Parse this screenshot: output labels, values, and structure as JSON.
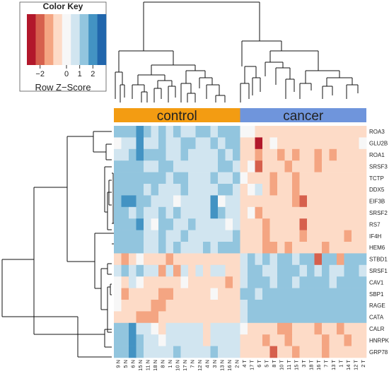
{
  "color_key": {
    "title": "Color Key",
    "ticks": [
      "−2",
      "0",
      "1",
      "2"
    ],
    "tick_values": [
      -2,
      0,
      1,
      2
    ],
    "subtitle": "Row Z−Score",
    "range": [
      -3,
      3
    ],
    "palette": [
      "#b2182b",
      "#d6604d",
      "#f4a582",
      "#fddbc7",
      "#f7f7f7",
      "#d1e5f0",
      "#92c5de",
      "#4393c3",
      "#2166ac"
    ]
  },
  "chart_data": {
    "type": "heatmap",
    "groups": [
      {
        "label": "control",
        "color": "#f39c12",
        "count": 17
      },
      {
        "label": "cancer",
        "color": "#6f95dc",
        "count": 17
      }
    ],
    "columns": [
      "9 N",
      "5 N",
      "6 N",
      "15 N",
      "11 N",
      "18 N",
      "8 N",
      "1 N",
      "10 N",
      "17 N",
      "7 N",
      "12 N",
      "4 N",
      "3 N",
      "13 N",
      "16 N",
      "2 N",
      "4 T",
      "17 T",
      "6 T",
      "5 T",
      "8 T",
      "10 T",
      "11 T",
      "15 T",
      "3 T",
      "18 T",
      "16 T",
      "7 T",
      "13 T",
      "1 T",
      "14 T",
      "12 T",
      "2 T"
    ],
    "rows": [
      "ROA3",
      "GLU2B",
      "ROA1",
      "SRSF3",
      "TCTP",
      "DDX5",
      "EIF3B",
      "SRSF2",
      "RS7",
      "IF4H",
      "HEM6",
      "STBD1",
      "SRSF1",
      "CAV1",
      "SBP1",
      "RAGE",
      "CATA",
      "CALR",
      "HNRPK",
      "GRP78"
    ],
    "values": [
      [
        1.2,
        1.0,
        1.4,
        2.0,
        1.0,
        0.5,
        1.0,
        0.5,
        1.0,
        0.8,
        0.8,
        1.0,
        1.2,
        0.9,
        1.2,
        1.0,
        1.2,
        -0.3,
        -0.1,
        -1.0,
        -0.7,
        -0.8,
        -0.6,
        -0.9,
        -0.6,
        -0.8,
        -1.0,
        -0.8,
        -0.6,
        -1.0,
        -0.7,
        -0.8,
        -0.6,
        -0.9
      ],
      [
        -0.3,
        0.6,
        0.5,
        2.0,
        0.8,
        0.9,
        1.5,
        0.6,
        0.5,
        1.4,
        1.0,
        0.9,
        0.6,
        1.4,
        0.8,
        1.2,
        1.5,
        -0.8,
        -0.5,
        -2.4,
        -0.8,
        -0.2,
        -0.8,
        -0.8,
        -0.5,
        -1.0,
        -0.6,
        -0.9,
        -0.4,
        -0.9,
        -0.7,
        -0.6,
        -0.8,
        -0.3
      ],
      [
        0.9,
        0.8,
        1.0,
        2.1,
        1.0,
        1.5,
        1.0,
        0.4,
        0.8,
        1.4,
        0.4,
        0.5,
        0.8,
        0.7,
        1.0,
        0.8,
        1.6,
        -0.7,
        -0.6,
        -1.2,
        -0.9,
        -0.4,
        -1.6,
        -0.5,
        -1.3,
        -0.8,
        -0.7,
        -1.6,
        -0.9,
        -1.1,
        -0.5,
        -1.0,
        -0.7,
        -1.0
      ],
      [
        1.0,
        1.0,
        1.2,
        1.3,
        0.9,
        0.6,
        1.0,
        1.0,
        0.8,
        0.4,
        0.8,
        0.8,
        0.6,
        0.5,
        1.0,
        1.4,
        0.7,
        -0.7,
        -0.3,
        -2.2,
        -0.8,
        -1.0,
        -1.0,
        -1.2,
        -0.6,
        -0.6,
        -0.8,
        -1.1,
        -1.0,
        -0.8,
        -0.9,
        -0.8,
        -1.0,
        -0.9
      ],
      [
        1.2,
        1.2,
        1.0,
        1.4,
        1.0,
        1.1,
        1.1,
        0.9,
        1.1,
        1.1,
        0.9,
        0.9,
        0.6,
        1.2,
        0.8,
        0.4,
        1.0,
        -0.3,
        -0.4,
        -1.0,
        -0.7,
        -1.5,
        -0.6,
        -1.0,
        -1.1,
        -0.9,
        -0.8,
        -0.9,
        -0.7,
        -1.0,
        -0.8,
        -0.8,
        -1.0,
        -0.7
      ],
      [
        1.0,
        1.2,
        1.4,
        1.0,
        0.8,
        1.0,
        0.6,
        0.4,
        0.9,
        1.0,
        0.8,
        0.6,
        0.8,
        0.8,
        1.0,
        1.2,
        0.9,
        -0.8,
        -0.2,
        0.5,
        -0.8,
        -1.2,
        -0.8,
        -1.0,
        -1.2,
        -0.8,
        -0.6,
        -1.0,
        -0.9,
        -0.8,
        -0.8,
        -1.0,
        -0.7,
        -0.8
      ],
      [
        1.6,
        2.2,
        2.2,
        1.2,
        1.0,
        0.6,
        0.8,
        0.6,
        0.3,
        0.8,
        0.8,
        0.6,
        0.6,
        1.8,
        0.3,
        0.8,
        0.6,
        -0.8,
        -0.6,
        -0.9,
        -0.7,
        -0.9,
        -0.8,
        -0.8,
        -1.2,
        -2.0,
        -0.6,
        -0.9,
        -0.7,
        -0.9,
        -0.7,
        -0.6,
        -0.8,
        -0.9
      ],
      [
        1.1,
        1.0,
        0.6,
        1.2,
        0.8,
        0.4,
        1.4,
        0.6,
        1.0,
        0.6,
        0.9,
        0.6,
        0.8,
        2.0,
        1.0,
        0.7,
        0.5,
        -0.5,
        -0.3,
        -1.4,
        -0.6,
        -0.9,
        -0.9,
        -0.7,
        -0.8,
        -1.0,
        -0.7,
        -0.9,
        -0.9,
        -0.6,
        -1.0,
        -0.8,
        -0.7,
        -0.6
      ],
      [
        1.0,
        1.3,
        1.0,
        1.8,
        0.9,
        0.3,
        1.0,
        1.1,
        0.4,
        0.6,
        1.2,
        0.6,
        0.8,
        0.6,
        0.9,
        0.3,
        0.8,
        -0.8,
        -0.7,
        -0.8,
        -1.2,
        -0.7,
        -0.9,
        -0.4,
        -1.0,
        -2.1,
        -0.6,
        -0.9,
        -0.6,
        -1.0,
        -0.8,
        -0.8,
        -0.9,
        -0.7
      ],
      [
        1.2,
        1.0,
        1.2,
        1.1,
        0.7,
        0.6,
        1.0,
        0.9,
        0.8,
        1.0,
        0.7,
        0.7,
        0.6,
        0.6,
        0.8,
        0.8,
        1.0,
        -0.7,
        -0.5,
        -0.9,
        -1.3,
        -1.0,
        -0.6,
        -0.8,
        -0.8,
        -1.1,
        -0.8,
        -0.9,
        -1.0,
        -0.7,
        -0.8,
        -1.2,
        -1.0,
        -0.9
      ],
      [
        1.0,
        1.0,
        1.0,
        1.2,
        0.8,
        0.5,
        1.0,
        0.8,
        1.0,
        0.9,
        0.8,
        0.9,
        1.0,
        0.9,
        1.0,
        1.0,
        1.2,
        -0.6,
        -0.5,
        -1.0,
        -1.2,
        -1.2,
        -0.8,
        -1.2,
        -0.9,
        -0.9,
        -1.0,
        -0.7,
        -1.2,
        -0.8,
        -1.0,
        -0.9,
        -1.0,
        -0.7
      ],
      [
        -0.6,
        -1.2,
        -0.4,
        0.2,
        -0.8,
        -0.8,
        -0.6,
        -1.4,
        -0.8,
        -0.6,
        -0.7,
        -1.0,
        -0.8,
        -0.5,
        -0.8,
        -0.8,
        -0.6,
        0.8,
        1.1,
        0.9,
        1.2,
        0.8,
        1.0,
        1.2,
        0.8,
        1.0,
        1.2,
        -1.9,
        1.0,
        1.2,
        -1.2,
        1.0,
        1.3,
        1.0
      ],
      [
        0.8,
        1.1,
        0.8,
        1.3,
        0.5,
        0.8,
        -1.4,
        0.9,
        -1.2,
        0.6,
        -0.7,
        0.4,
        -1.0,
        0.6,
        0.9,
        -0.6,
        -0.8,
        0.8,
        1.0,
        1.1,
        0.6,
        0.8,
        1.0,
        1.0,
        1.2,
        0.8,
        1.1,
        0.9,
        1.0,
        0.8,
        0.6,
        1.2,
        1.0,
        0.8
      ],
      [
        -0.3,
        -0.8,
        0.4,
        0.2,
        -0.9,
        -0.8,
        -0.6,
        -0.9,
        -0.8,
        0.3,
        -0.7,
        -1.0,
        -0.8,
        -0.9,
        -0.6,
        -1.2,
        -1.0,
        0.8,
        1.0,
        1.0,
        1.1,
        0.9,
        1.0,
        1.2,
        0.8,
        1.0,
        1.0,
        1.1,
        1.0,
        0.9,
        1.0,
        1.2,
        1.0,
        1.1
      ],
      [
        -0.2,
        -1.2,
        -0.6,
        -0.4,
        -0.9,
        -1.0,
        -1.6,
        -1.2,
        -0.8,
        -0.9,
        -0.8,
        -0.9,
        -0.8,
        -0.3,
        -0.9,
        -1.0,
        -0.8,
        1.0,
        1.1,
        0.9,
        1.2,
        1.0,
        1.0,
        1.1,
        1.0,
        1.0,
        1.1,
        1.0,
        1.0,
        1.0,
        1.0,
        1.1,
        1.0,
        1.2
      ],
      [
        0.3,
        -1.0,
        -0.8,
        -0.9,
        -1.0,
        -1.4,
        -1.2,
        -1.0,
        -0.9,
        -0.9,
        -0.8,
        -0.9,
        -0.6,
        -1.0,
        -0.8,
        -0.8,
        -1.0,
        0.9,
        1.0,
        1.0,
        1.1,
        1.0,
        1.0,
        1.1,
        1.0,
        1.1,
        1.0,
        1.0,
        1.0,
        1.1,
        1.0,
        1.1,
        1.1,
        1.0
      ],
      [
        -0.4,
        -0.8,
        -0.6,
        -1.4,
        -1.6,
        -1.4,
        -1.0,
        -0.9,
        -1.0,
        -0.8,
        -0.9,
        -0.9,
        -0.8,
        -0.9,
        -0.9,
        -0.9,
        -1.0,
        0.9,
        1.0,
        1.0,
        1.0,
        1.0,
        1.0,
        1.0,
        1.0,
        1.0,
        1.0,
        1.0,
        1.0,
        1.0,
        1.0,
        1.0,
        1.0,
        1.0
      ],
      [
        1.0,
        1.2,
        2.0,
        0.8,
        0.6,
        0.3,
        -0.6,
        0.9,
        0.5,
        0.6,
        0.9,
        0.4,
        -0.8,
        0.7,
        0.4,
        0.8,
        0.6,
        -0.3,
        -0.7,
        -0.6,
        -1.0,
        -0.4,
        -1.2,
        -1.6,
        -0.9,
        -0.6,
        -1.0,
        -1.1,
        -0.7,
        -1.0,
        -1.2,
        -0.8,
        -0.8,
        -0.5
      ],
      [
        1.0,
        1.5,
        2.2,
        1.2,
        0.4,
        0.6,
        0.2,
        0.8,
        0.4,
        0.7,
        0.5,
        0.6,
        -0.4,
        0.5,
        0.6,
        0.8,
        0.6,
        -0.4,
        -0.5,
        -1.0,
        -1.2,
        -0.8,
        -0.8,
        -1.4,
        -0.7,
        -1.0,
        -0.8,
        -0.8,
        -1.2,
        -0.7,
        -1.0,
        -1.3,
        -0.9,
        -0.7
      ],
      [
        1.2,
        1.0,
        2.0,
        1.3,
        0.9,
        0.6,
        0.6,
        0.4,
        1.0,
        0.8,
        0.6,
        0.5,
        0.8,
        1.0,
        0.6,
        0.6,
        0.8,
        -0.6,
        -0.8,
        -0.9,
        -1.0,
        -2.2,
        -1.0,
        -0.9,
        -1.1,
        -0.8,
        -0.9,
        -0.8,
        -1.1,
        -0.8,
        -0.9,
        -0.8,
        -1.0,
        -0.9
      ]
    ]
  }
}
